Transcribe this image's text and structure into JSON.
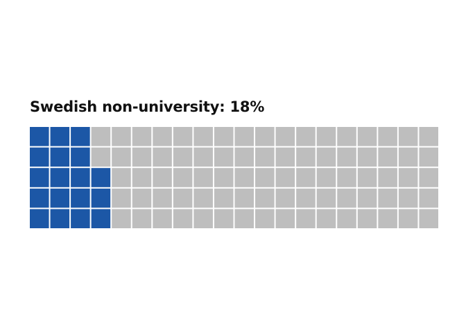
{
  "chart_data": {
    "type": "waffle",
    "title": "Swedish non-university: 18%",
    "total_cells": 100,
    "filled_cells": 18,
    "rows": 5,
    "columns": 20,
    "fill_order": "column-major, bottom-to-top",
    "colors": {
      "filled": "#1c57a6",
      "empty": "#bebebe",
      "gap": "#ffffff"
    }
  }
}
